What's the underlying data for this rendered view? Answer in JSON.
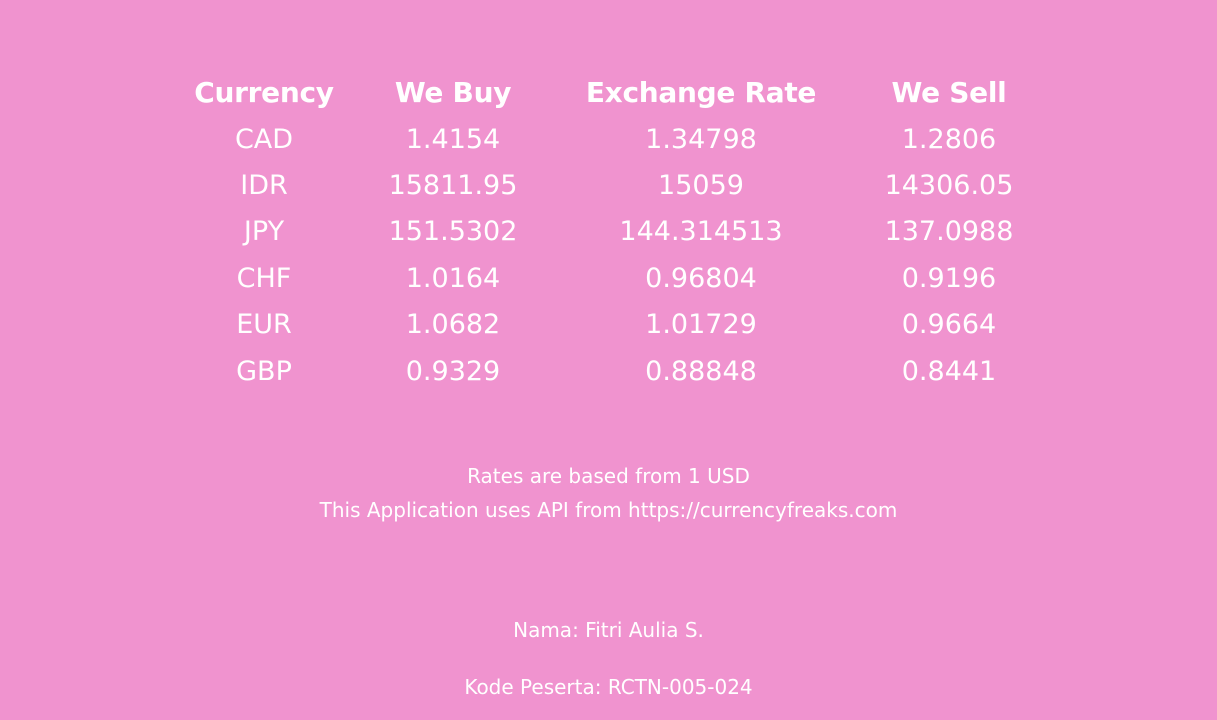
{
  "colors": {
    "background": "#f093cf",
    "text": "#ffffff"
  },
  "table": {
    "headers": [
      "Currency",
      "We Buy",
      "Exchange Rate",
      "We Sell"
    ],
    "rows": [
      {
        "currency": "CAD",
        "buy": "1.4154",
        "rate": "1.34798",
        "sell": "1.2806"
      },
      {
        "currency": "IDR",
        "buy": "15811.95",
        "rate": "15059",
        "sell": "14306.05"
      },
      {
        "currency": "JPY",
        "buy": "151.5302",
        "rate": "144.314513",
        "sell": "137.0988"
      },
      {
        "currency": "CHF",
        "buy": "1.0164",
        "rate": "0.96804",
        "sell": "0.9196"
      },
      {
        "currency": "EUR",
        "buy": "1.0682",
        "rate": "1.01729",
        "sell": "0.9664"
      },
      {
        "currency": "GBP",
        "buy": "0.9329",
        "rate": "0.88848",
        "sell": "0.8441"
      }
    ]
  },
  "info": {
    "base_note": "Rates are based from 1 USD",
    "api_note": "This Application uses API from https://currencyfreaks.com"
  },
  "participant": {
    "name_line": "Nama: Fitri Aulia S.",
    "code_line": "Kode Peserta: RCTN-005-024"
  }
}
